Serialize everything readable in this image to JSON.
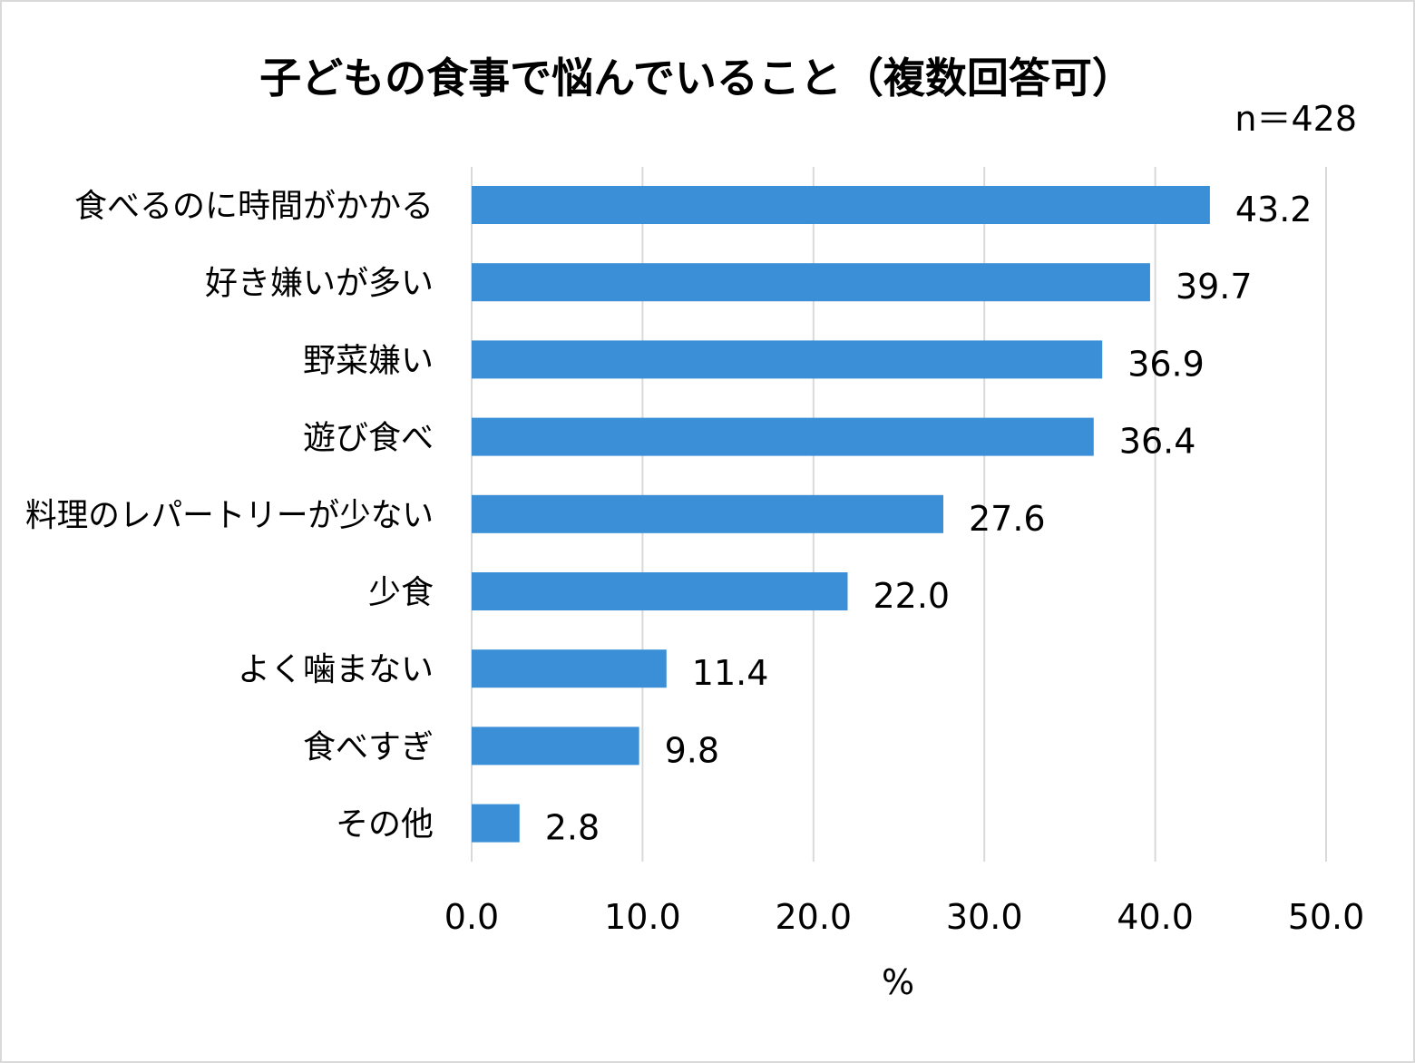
{
  "colors": {
    "bar": "#3a8fd6",
    "grid": "#d9d9d9",
    "border": "#d9d9d9",
    "text": "#000000"
  },
  "chart_data": {
    "type": "bar",
    "orientation": "horizontal",
    "title": "子どもの食事で悩んでいること（複数回答可）",
    "sample_note": "n＝428",
    "categories": [
      "食べるのに時間がかかる",
      "好き嫌いが多い",
      "野菜嫌い",
      "遊び食べ",
      "料理のレパートリーが少ない",
      "少食",
      "よく噛まない",
      "食べすぎ",
      "その他"
    ],
    "values": [
      43.2,
      39.7,
      36.9,
      36.4,
      27.6,
      22.0,
      11.4,
      9.8,
      2.8
    ],
    "value_labels": [
      "43.2",
      "39.7",
      "36.9",
      "36.4",
      "27.6",
      "22.0",
      "11.4",
      "9.8",
      "2.8"
    ],
    "xlabel": "%",
    "ylabel": "",
    "xlim": [
      0,
      50
    ],
    "xticks": [
      0,
      10,
      20,
      30,
      40,
      50
    ],
    "xtick_labels": [
      "0.0",
      "10.0",
      "20.0",
      "30.0",
      "40.0",
      "50.0"
    ],
    "grid": "vertical",
    "legend": "none"
  }
}
